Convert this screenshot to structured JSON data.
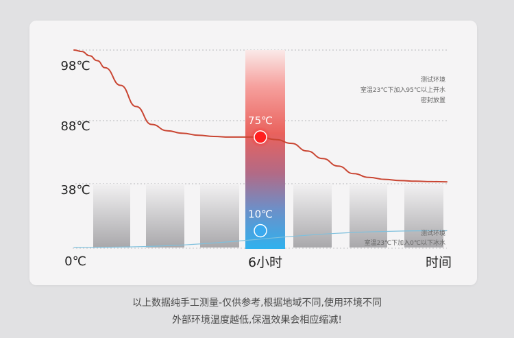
{
  "chart_data": {
    "type": "line",
    "title": "",
    "y_tick_labels": [
      "98℃",
      "88℃",
      "38℃",
      "0℃"
    ],
    "x_tick_labels": [
      "6小时",
      "时间"
    ],
    "series": [
      {
        "label": "测试环境\n室温23℃下加入95℃以上开水\n密封放置",
        "x": [
          0,
          0.25,
          0.5,
          0.75,
          1,
          1.5,
          2,
          2.5,
          3,
          3.5,
          4,
          4.5,
          5,
          5.5,
          6,
          6.5,
          7,
          7.5,
          8,
          8.5,
          9,
          9.5,
          10,
          10.5,
          11,
          11.5,
          12
        ],
        "values": [
          98,
          97.8,
          97.2,
          96.5,
          95.5,
          93,
          90,
          85,
          80,
          78,
          76.5,
          75.5,
          75,
          75,
          75,
          73,
          70,
          64,
          58,
          52,
          46,
          43,
          41.5,
          40.5,
          40,
          39.7,
          39.5
        ],
        "point": {
          "x": 6,
          "value": 75,
          "label": "75℃"
        },
        "color": "#c94532"
      },
      {
        "label": "测试环境\n室温23℃下加入0℃以下冰水",
        "x": [
          0,
          12
        ],
        "values": [
          0,
          10
        ],
        "point": {
          "x": 6,
          "value": 10,
          "label": "10℃"
        },
        "color": "#7fc0dd"
      }
    ]
  },
  "annotations": {
    "hot_env": [
      "测试环境",
      "室温23℃下加入95℃以上开水",
      "密封放置"
    ],
    "cold_env": [
      "测试环境",
      "室温23℃下加入0℃以下冰水"
    ]
  },
  "caption": {
    "line1": "以上数据纯手工测量-仅供参考,根据地域不同,使用环境不同",
    "line2": "外部环境温度越低,保温效果会相应缩减!"
  },
  "colors": {
    "hot_line": "#c94532",
    "cold_line": "#7fc0dd",
    "hot_dot": "#ff1f1f",
    "cold_dot": "#3aa9ee"
  }
}
